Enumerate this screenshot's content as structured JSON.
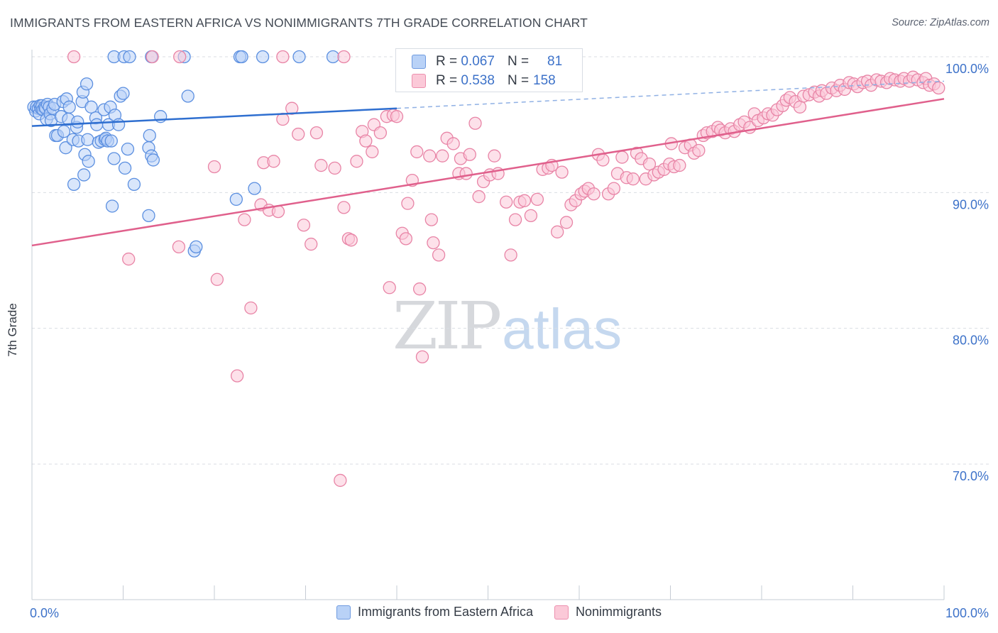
{
  "title": "IMMIGRANTS FROM EASTERN AFRICA VS NONIMMIGRANTS 7TH GRADE CORRELATION CHART",
  "source": "Source: ZipAtlas.com",
  "watermark": {
    "zip": "ZIP",
    "atlas": "atlas"
  },
  "colors": {
    "blue": "#5b8fe0",
    "blue_fill": "#b9d2f7",
    "blue_line": "#2f6fd0",
    "pink": "#e884a6",
    "pink_fill": "#fbc9d8",
    "pink_line": "#e0608c",
    "axis_label": "#3d72c9",
    "grid": "#d9dde3"
  },
  "stats": [
    {
      "r_label": "R =",
      "r_value": "0.067",
      "n_label": "N =",
      "n_value": "81",
      "color": "blue"
    },
    {
      "r_label": "R =",
      "r_value": "0.538",
      "n_label": "N =",
      "n_value": "158",
      "color": "pink"
    }
  ],
  "legend": [
    "Immigrants from Eastern Africa",
    "Nonimmigrants"
  ],
  "chart_data": {
    "type": "scatter",
    "title": "IMMIGRANTS FROM EASTERN AFRICA VS NONIMMIGRANTS 7TH GRADE CORRELATION CHART",
    "xlabel": "",
    "ylabel": "7th Grade",
    "xlim": [
      0,
      100
    ],
    "ylim": [
      60.5,
      101.5
    ],
    "x_tick_labels": [
      "0.0%",
      "100.0%"
    ],
    "y_ticks": [
      70,
      80,
      90,
      100
    ],
    "y_tick_labels": [
      "70.0%",
      "80.0%",
      "90.0%",
      "100.0%"
    ],
    "grid": true,
    "legend_position": "bottom",
    "series": [
      {
        "name": "Immigrants from Eastern Africa",
        "color": "#5b8fe0",
        "trend": {
          "x": [
            0,
            40
          ],
          "y": [
            94.9,
            96.2
          ],
          "dashed_to": [
            100,
            98.2
          ]
        },
        "points": [
          [
            0.2,
            96.3
          ],
          [
            0.4,
            96.0
          ],
          [
            0.5,
            96.3
          ],
          [
            0.7,
            96.2
          ],
          [
            0.8,
            95.8
          ],
          [
            0.9,
            96.4
          ],
          [
            1.0,
            96.2
          ],
          [
            1.1,
            96.4
          ],
          [
            1.2,
            96.1
          ],
          [
            1.4,
            96.3
          ],
          [
            1.5,
            96.2
          ],
          [
            1.6,
            95.4
          ],
          [
            1.7,
            96.5
          ],
          [
            1.9,
            96.3
          ],
          [
            2.0,
            95.8
          ],
          [
            2.1,
            95.3
          ],
          [
            2.3,
            96.2
          ],
          [
            2.5,
            96.5
          ],
          [
            2.6,
            94.2
          ],
          [
            2.8,
            94.2
          ],
          [
            3.2,
            95.6
          ],
          [
            3.4,
            96.7
          ],
          [
            3.5,
            94.5
          ],
          [
            3.7,
            93.3
          ],
          [
            3.8,
            96.9
          ],
          [
            4.0,
            95.4
          ],
          [
            4.1,
            96.3
          ],
          [
            4.5,
            93.9
          ],
          [
            4.6,
            90.6
          ],
          [
            4.9,
            94.8
          ],
          [
            5.0,
            95.2
          ],
          [
            5.1,
            93.8
          ],
          [
            5.5,
            96.7
          ],
          [
            5.6,
            97.4
          ],
          [
            5.7,
            91.3
          ],
          [
            5.8,
            92.8
          ],
          [
            6.1,
            93.9
          ],
          [
            6.0,
            98.0
          ],
          [
            6.2,
            92.3
          ],
          [
            6.5,
            96.3
          ],
          [
            7.0,
            95.5
          ],
          [
            7.1,
            95.0
          ],
          [
            7.3,
            93.7
          ],
          [
            7.6,
            93.8
          ],
          [
            7.9,
            96.1
          ],
          [
            8.0,
            93.9
          ],
          [
            8.1,
            94.0
          ],
          [
            8.3,
            93.8
          ],
          [
            8.4,
            95.0
          ],
          [
            8.7,
            93.8
          ],
          [
            8.6,
            96.3
          ],
          [
            8.8,
            89.0
          ],
          [
            9.0,
            92.5
          ],
          [
            9.1,
            95.7
          ],
          [
            9.5,
            95.0
          ],
          [
            9.7,
            97.1
          ],
          [
            10.0,
            97.3
          ],
          [
            10.2,
            91.8
          ],
          [
            10.5,
            93.2
          ],
          [
            11.2,
            90.6
          ],
          [
            12.8,
            88.3
          ],
          [
            12.9,
            94.2
          ],
          [
            12.8,
            93.3
          ],
          [
            13.1,
            92.7
          ],
          [
            13.3,
            92.4
          ],
          [
            14.1,
            95.6
          ],
          [
            17.1,
            97.1
          ],
          [
            17.8,
            85.7
          ],
          [
            18.0,
            86.0
          ],
          [
            22.4,
            89.5
          ],
          [
            22.8,
            100.0
          ],
          [
            24.4,
            90.3
          ],
          [
            9.0,
            100.0
          ],
          [
            10.1,
            100.0
          ],
          [
            10.7,
            100.0
          ],
          [
            13.1,
            100.0
          ],
          [
            16.7,
            100.0
          ],
          [
            23.0,
            100.0
          ],
          [
            25.3,
            100.0
          ],
          [
            29.3,
            100.0
          ],
          [
            33.0,
            100.0
          ]
        ]
      },
      {
        "name": "Nonimmigrants",
        "color": "#e884a6",
        "trend": {
          "x": [
            0,
            100
          ],
          "y": [
            86.1,
            96.9
          ]
        },
        "points": [
          [
            4.6,
            100.0
          ],
          [
            13.2,
            100.0
          ],
          [
            16.2,
            100.0
          ],
          [
            27.5,
            100.0
          ],
          [
            34.2,
            100.0
          ],
          [
            10.6,
            85.1
          ],
          [
            16.1,
            86.0
          ],
          [
            20.3,
            83.6
          ],
          [
            20.0,
            91.9
          ],
          [
            22.5,
            76.5
          ],
          [
            23.3,
            88.0
          ],
          [
            24.0,
            81.5
          ],
          [
            25.1,
            89.1
          ],
          [
            25.4,
            92.2
          ],
          [
            26.0,
            88.7
          ],
          [
            26.5,
            92.3
          ],
          [
            27.0,
            88.6
          ],
          [
            27.5,
            95.4
          ],
          [
            28.5,
            96.2
          ],
          [
            29.2,
            94.3
          ],
          [
            29.8,
            87.6
          ],
          [
            30.6,
            86.2
          ],
          [
            31.2,
            94.4
          ],
          [
            31.7,
            92.0
          ],
          [
            33.2,
            91.8
          ],
          [
            33.8,
            68.8
          ],
          [
            34.2,
            88.9
          ],
          [
            34.7,
            86.6
          ],
          [
            35.0,
            86.5
          ],
          [
            35.6,
            92.3
          ],
          [
            36.2,
            94.5
          ],
          [
            36.6,
            93.8
          ],
          [
            37.3,
            93.0
          ],
          [
            37.5,
            95.0
          ],
          [
            38.2,
            94.4
          ],
          [
            38.9,
            95.6
          ],
          [
            39.2,
            83.0
          ],
          [
            39.6,
            95.7
          ],
          [
            40.0,
            95.6
          ],
          [
            40.6,
            87.0
          ],
          [
            41.0,
            86.6
          ],
          [
            41.2,
            89.2
          ],
          [
            41.7,
            90.9
          ],
          [
            42.2,
            93.0
          ],
          [
            42.5,
            82.9
          ],
          [
            42.8,
            77.9
          ],
          [
            43.6,
            92.7
          ],
          [
            43.8,
            88.0
          ],
          [
            44.0,
            86.3
          ],
          [
            44.6,
            85.4
          ],
          [
            45.0,
            92.7
          ],
          [
            45.5,
            94.0
          ],
          [
            46.2,
            93.6
          ],
          [
            46.8,
            91.4
          ],
          [
            47.0,
            92.5
          ],
          [
            47.6,
            91.4
          ],
          [
            48.0,
            92.8
          ],
          [
            48.6,
            95.1
          ],
          [
            49.0,
            89.7
          ],
          [
            49.5,
            90.8
          ],
          [
            50.2,
            91.3
          ],
          [
            50.7,
            92.7
          ],
          [
            51.1,
            91.4
          ],
          [
            52.0,
            89.3
          ],
          [
            52.5,
            85.4
          ],
          [
            53.0,
            88.0
          ],
          [
            53.5,
            89.3
          ],
          [
            54.0,
            89.4
          ],
          [
            54.7,
            88.3
          ],
          [
            55.4,
            89.5
          ],
          [
            56.0,
            91.7
          ],
          [
            56.6,
            91.8
          ],
          [
            57.0,
            92.0
          ],
          [
            57.6,
            87.1
          ],
          [
            58.1,
            91.5
          ],
          [
            58.6,
            87.8
          ],
          [
            59.1,
            89.1
          ],
          [
            59.6,
            89.4
          ],
          [
            60.2,
            89.9
          ],
          [
            60.6,
            90.1
          ],
          [
            61.0,
            90.3
          ],
          [
            61.6,
            89.9
          ],
          [
            62.1,
            92.8
          ],
          [
            62.6,
            92.4
          ],
          [
            63.2,
            89.9
          ],
          [
            63.8,
            90.3
          ],
          [
            64.2,
            91.4
          ],
          [
            64.7,
            92.6
          ],
          [
            65.2,
            91.1
          ],
          [
            65.9,
            91.0
          ],
          [
            66.3,
            92.9
          ],
          [
            66.8,
            92.5
          ],
          [
            67.3,
            91.0
          ],
          [
            67.7,
            92.1
          ],
          [
            68.2,
            91.3
          ],
          [
            68.7,
            91.5
          ],
          [
            69.3,
            91.7
          ],
          [
            69.9,
            92.1
          ],
          [
            70.1,
            93.6
          ],
          [
            70.4,
            91.9
          ],
          [
            71.0,
            92.0
          ],
          [
            71.6,
            93.3
          ],
          [
            72.2,
            93.5
          ],
          [
            72.6,
            92.9
          ],
          [
            73.1,
            93.1
          ],
          [
            73.6,
            94.2
          ],
          [
            74.0,
            94.4
          ],
          [
            74.6,
            94.5
          ],
          [
            75.2,
            94.8
          ],
          [
            75.5,
            94.6
          ],
          [
            76.0,
            94.4
          ],
          [
            76.6,
            94.7
          ],
          [
            77.0,
            94.5
          ],
          [
            77.6,
            95.0
          ],
          [
            78.1,
            95.2
          ],
          [
            78.7,
            94.8
          ],
          [
            79.2,
            95.8
          ],
          [
            79.6,
            95.3
          ],
          [
            80.2,
            95.5
          ],
          [
            80.7,
            95.8
          ],
          [
            81.2,
            95.7
          ],
          [
            81.7,
            96.1
          ],
          [
            82.3,
            96.4
          ],
          [
            82.7,
            96.8
          ],
          [
            83.1,
            97.0
          ],
          [
            83.7,
            96.7
          ],
          [
            84.2,
            96.3
          ],
          [
            84.6,
            97.1
          ],
          [
            85.2,
            97.2
          ],
          [
            85.8,
            97.4
          ],
          [
            86.3,
            97.1
          ],
          [
            86.6,
            97.5
          ],
          [
            87.1,
            97.3
          ],
          [
            87.7,
            97.7
          ],
          [
            88.2,
            97.5
          ],
          [
            88.6,
            97.9
          ],
          [
            89.1,
            97.6
          ],
          [
            89.6,
            98.1
          ],
          [
            90.1,
            98.0
          ],
          [
            90.5,
            97.8
          ],
          [
            91.1,
            98.1
          ],
          [
            91.6,
            98.2
          ],
          [
            92.0,
            97.9
          ],
          [
            92.6,
            98.3
          ],
          [
            93.1,
            98.2
          ],
          [
            93.7,
            98.1
          ],
          [
            94.1,
            98.4
          ],
          [
            94.6,
            98.3
          ],
          [
            95.2,
            98.2
          ],
          [
            95.6,
            98.4
          ],
          [
            96.2,
            98.2
          ],
          [
            96.6,
            98.5
          ],
          [
            97.1,
            98.3
          ],
          [
            97.7,
            98.1
          ],
          [
            98.0,
            98.4
          ],
          [
            98.4,
            97.9
          ],
          [
            98.9,
            98.0
          ],
          [
            99.4,
            97.7
          ]
        ]
      }
    ]
  }
}
